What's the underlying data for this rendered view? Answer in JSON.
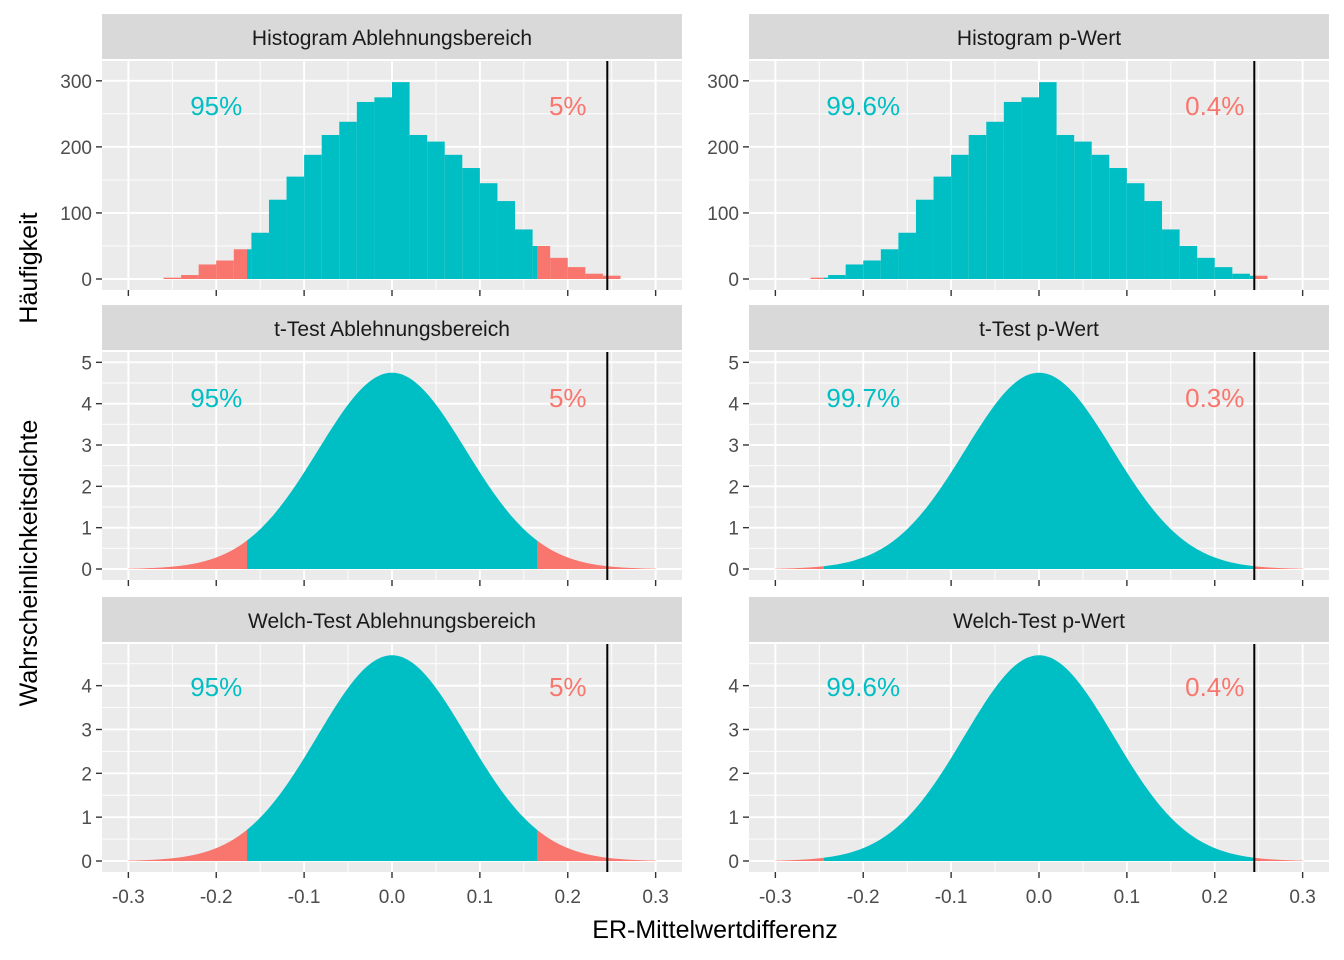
{
  "figure": {
    "xlabel": "ER-Mittelwertdifferenz",
    "ylabel_top": "Häufigkeit",
    "ylabel_bottom": "Wahrscheinlichkeitsdichte",
    "colors": {
      "accept": "#00BFC4",
      "reject": "#F8766D",
      "panel_bg": "#EBEBEB",
      "strip_bg": "#D9D9D9",
      "grid": "#FFFFFF",
      "vline": "#000000"
    }
  },
  "chart_data": [
    {
      "type": "bar",
      "title": "Histogram Ablehnungsbereich",
      "bin_width": 0.02,
      "bin_centers": [
        -0.25,
        -0.23,
        -0.21,
        -0.19,
        -0.17,
        -0.15,
        -0.13,
        -0.11,
        -0.09,
        -0.07,
        -0.05,
        -0.03,
        -0.01,
        0.01,
        0.03,
        0.05,
        0.07,
        0.09,
        0.11,
        0.13,
        0.15,
        0.17,
        0.19,
        0.21,
        0.23,
        0.25
      ],
      "values": [
        2,
        6,
        22,
        28,
        45,
        70,
        120,
        155,
        188,
        218,
        238,
        268,
        275,
        298,
        218,
        208,
        188,
        168,
        145,
        118,
        75,
        50,
        32,
        18,
        8,
        5
      ],
      "reject_region": [
        -0.165,
        0.165
      ],
      "vline": 0.245,
      "annotations": {
        "accept_label": "95%",
        "reject_label": "5%"
      },
      "xlim": [
        -0.3,
        0.3
      ],
      "ylim": [
        0,
        300
      ],
      "xticks": [
        "-0.3",
        "-0.2",
        "-0.1",
        "0.0",
        "0.1",
        "0.2",
        "0.3"
      ],
      "yticks": [
        0,
        100,
        200,
        300
      ]
    },
    {
      "type": "bar",
      "title": "Histogram p-Wert",
      "bin_width": 0.02,
      "bin_centers": [
        -0.25,
        -0.23,
        -0.21,
        -0.19,
        -0.17,
        -0.15,
        -0.13,
        -0.11,
        -0.09,
        -0.07,
        -0.05,
        -0.03,
        -0.01,
        0.01,
        0.03,
        0.05,
        0.07,
        0.09,
        0.11,
        0.13,
        0.15,
        0.17,
        0.19,
        0.21,
        0.23,
        0.25
      ],
      "values": [
        2,
        6,
        22,
        28,
        45,
        70,
        120,
        155,
        188,
        218,
        238,
        268,
        275,
        298,
        218,
        208,
        188,
        168,
        145,
        118,
        75,
        50,
        32,
        18,
        8,
        5
      ],
      "reject_region": [
        -0.245,
        0.245
      ],
      "vline": 0.245,
      "annotations": {
        "accept_label": "99.6%",
        "reject_label": "0.4%"
      },
      "xlim": [
        -0.3,
        0.3
      ],
      "ylim": [
        0,
        300
      ],
      "xticks": [
        "-0.3",
        "-0.2",
        "-0.1",
        "0.0",
        "0.1",
        "0.2",
        "0.3"
      ],
      "yticks": [
        0,
        100,
        200,
        300
      ]
    },
    {
      "type": "area",
      "title": "t-Test Ablehnungsbereich",
      "distribution": {
        "mean": 0.0,
        "sd": 0.084,
        "x_range": [
          -0.3,
          0.3
        ]
      },
      "reject_region": [
        -0.165,
        0.165
      ],
      "vline": 0.245,
      "annotations": {
        "accept_label": "95%",
        "reject_label": "5%"
      },
      "xlim": [
        -0.3,
        0.3
      ],
      "ylim": [
        0,
        5
      ],
      "xticks": [
        "-0.3",
        "-0.2",
        "-0.1",
        "0.0",
        "0.1",
        "0.2",
        "0.3"
      ],
      "yticks": [
        0,
        1,
        2,
        3,
        4,
        5
      ]
    },
    {
      "type": "area",
      "title": "t-Test p-Wert",
      "distribution": {
        "mean": 0.0,
        "sd": 0.084,
        "x_range": [
          -0.3,
          0.3
        ]
      },
      "reject_region": [
        -0.245,
        0.245
      ],
      "vline": 0.245,
      "annotations": {
        "accept_label": "99.7%",
        "reject_label": "0.3%"
      },
      "xlim": [
        -0.3,
        0.3
      ],
      "ylim": [
        0,
        5
      ],
      "xticks": [
        "-0.3",
        "-0.2",
        "-0.1",
        "0.0",
        "0.1",
        "0.2",
        "0.3"
      ],
      "yticks": [
        0,
        1,
        2,
        3,
        4,
        5
      ]
    },
    {
      "type": "area",
      "title": "Welch-Test Ablehnungsbereich",
      "distribution": {
        "mean": 0.0,
        "sd": 0.085,
        "x_range": [
          -0.3,
          0.3
        ]
      },
      "reject_region": [
        -0.165,
        0.165
      ],
      "vline": 0.245,
      "annotations": {
        "accept_label": "95%",
        "reject_label": "5%"
      },
      "xlim": [
        -0.3,
        0.3
      ],
      "ylim": [
        0,
        4.9
      ],
      "xticks": [
        "-0.3",
        "-0.2",
        "-0.1",
        "0.0",
        "0.1",
        "0.2",
        "0.3"
      ],
      "yticks": [
        0,
        1,
        2,
        3,
        4
      ]
    },
    {
      "type": "area",
      "title": "Welch-Test p-Wert",
      "distribution": {
        "mean": 0.0,
        "sd": 0.085,
        "x_range": [
          -0.3,
          0.3
        ]
      },
      "reject_region": [
        -0.245,
        0.245
      ],
      "vline": 0.245,
      "annotations": {
        "accept_label": "99.6%",
        "reject_label": "0.4%"
      },
      "xlim": [
        -0.3,
        0.3
      ],
      "ylim": [
        0,
        4.9
      ],
      "xticks": [
        "-0.3",
        "-0.2",
        "-0.1",
        "0.0",
        "0.1",
        "0.2",
        "0.3"
      ],
      "yticks": [
        0,
        1,
        2,
        3,
        4
      ]
    }
  ]
}
